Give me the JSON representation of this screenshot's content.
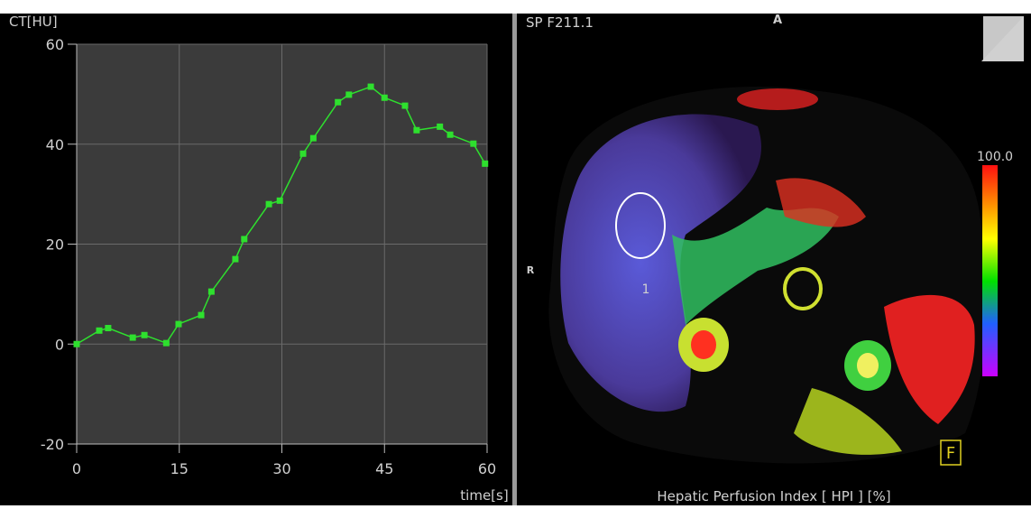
{
  "chart_data": {
    "type": "line",
    "y_label": "CT[HU]",
    "x_label": "time[s]",
    "x": [
      0,
      3.3,
      4.6,
      8.2,
      9.9,
      13.1,
      14.9,
      18.2,
      19.7,
      23.2,
      24.5,
      28.1,
      29.7,
      33.1,
      34.6,
      38.2,
      39.8,
      43.0,
      45.0,
      48.0,
      49.7,
      53.1,
      54.6,
      58.0,
      59.7
    ],
    "series": [
      {
        "color": "#2ee02e",
        "values": [
          0,
          2.7,
          3.2,
          1.3,
          1.8,
          0.2,
          4.0,
          5.8,
          10.5,
          17.0,
          21.0,
          28.0,
          28.7,
          38.1,
          41.2,
          48.4,
          49.9,
          51.5,
          49.3,
          47.7,
          42.8,
          43.5,
          41.9,
          40.1,
          36.1
        ]
      }
    ],
    "xlim": [
      0,
      60
    ],
    "xticks": [
      0,
      15,
      30,
      45,
      60
    ],
    "ylim": [
      -20,
      60
    ],
    "yticks": [
      -20,
      0,
      20,
      40,
      60
    ],
    "grid": true
  },
  "image_panel": {
    "label": "SP F211.1",
    "orientation_top": "A",
    "orientation_left": "R",
    "roi_label": "1",
    "scale_max": "100.0",
    "corner_marker": "F",
    "caption": "Hepatic Perfusion Index [ HPI ] [%]"
  }
}
